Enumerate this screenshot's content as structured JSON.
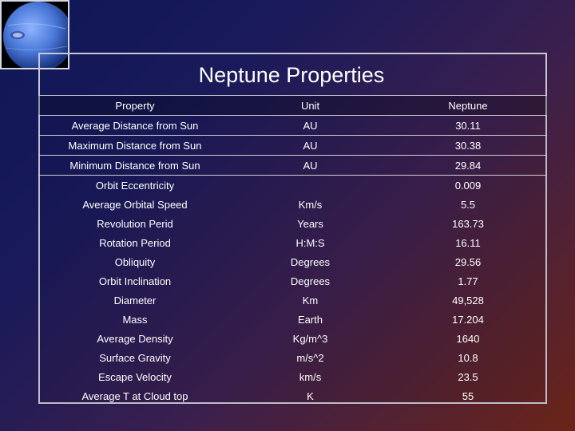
{
  "slide": {
    "title": "Neptune Properties",
    "image": {
      "icon": "neptune-planet-image"
    }
  },
  "table": {
    "headers": [
      "Property",
      "Unit",
      "Neptune"
    ],
    "rows": [
      [
        "Average Distance from Sun",
        "AU",
        "30.11"
      ],
      [
        "Maximum Distance from Sun",
        "AU",
        "30.38"
      ],
      [
        "Minimum Distance from Sun",
        "AU",
        "29.84"
      ],
      [
        "Orbit Eccentricity",
        "",
        "0.009"
      ],
      [
        "Average Orbital Speed",
        "Km/s",
        "5.5"
      ],
      [
        "Revolution Perid",
        "Years",
        "163.73"
      ],
      [
        "Rotation Period",
        "H:M:S",
        "16.11"
      ],
      [
        "Obliquity",
        "Degrees",
        "29.56"
      ],
      [
        "Orbit Inclination",
        "Degrees",
        "1.77"
      ],
      [
        "Diameter",
        "Km",
        "49,528"
      ],
      [
        "Mass",
        "Earth",
        "17.204"
      ],
      [
        "Average Density",
        "Kg/m^3",
        "1640"
      ],
      [
        "Surface Gravity",
        "m/s^2",
        "10.8"
      ],
      [
        "Escape Velocity",
        "km/s",
        "23.5"
      ],
      [
        "Average T at Cloud top",
        "K",
        "55"
      ]
    ]
  },
  "colors": {
    "background_start": "#0e1656",
    "background_end": "#6a2418",
    "text": "#ffffff",
    "rule": "#d0d0d8"
  }
}
